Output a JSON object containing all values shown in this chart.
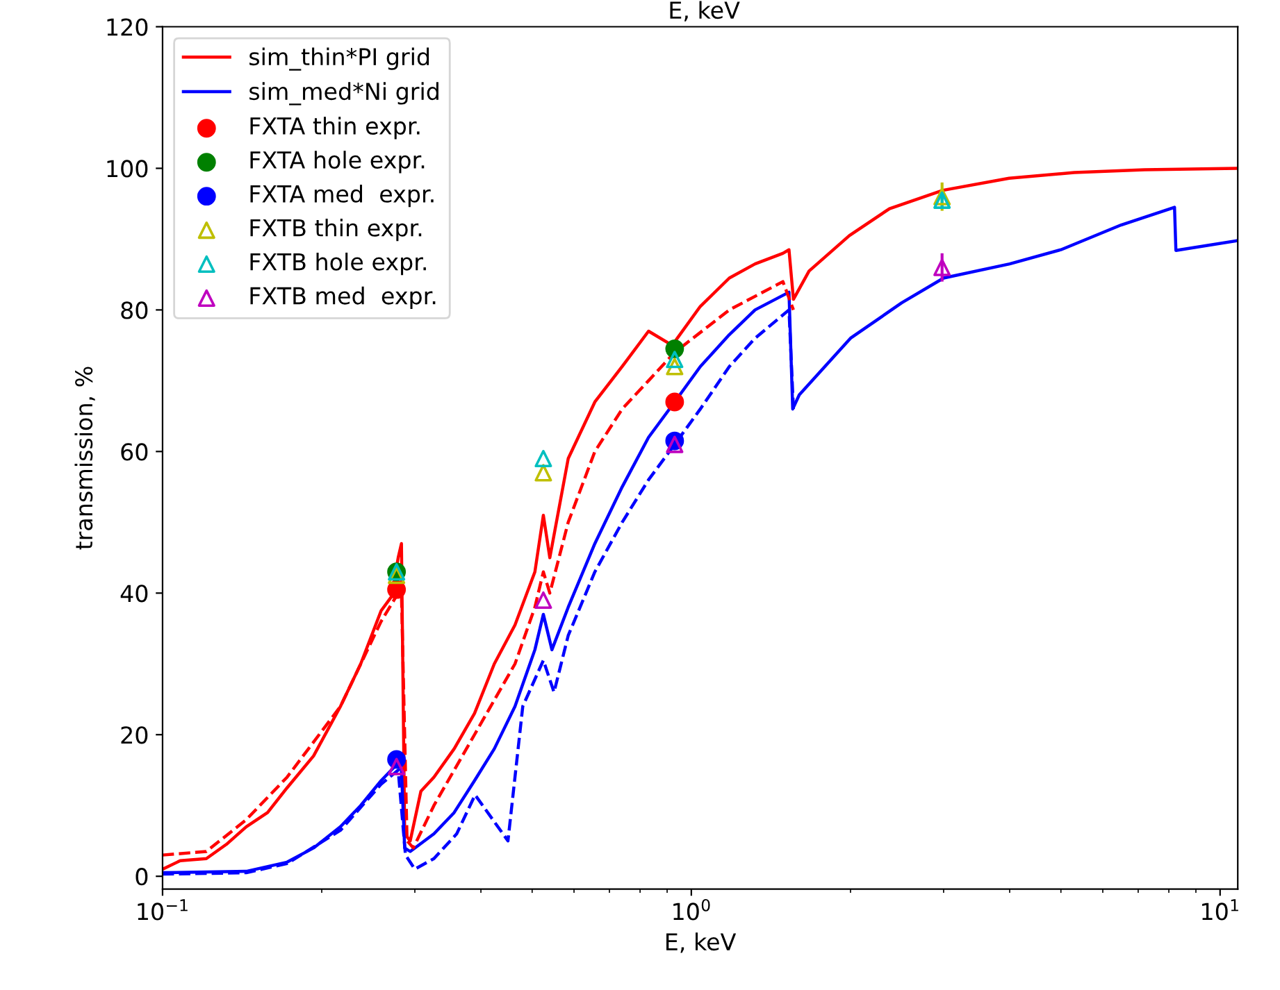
{
  "chart_data": {
    "type": "line",
    "xlabel": "E, keV",
    "ylabel": "transmission, %",
    "log": "x",
    "xlim": [
      0.1,
      10.8
    ],
    "ylim": [
      -1.8,
      120
    ],
    "xticks": [
      {
        "value": 0.1,
        "label": "10$^{−1}$"
      },
      {
        "value": 1,
        "label": "10$^{0}$"
      },
      {
        "value": 10,
        "label": "10$^{1}$"
      }
    ],
    "yticks": [
      0,
      20,
      40,
      60,
      80,
      100,
      120
    ],
    "grid": false,
    "legend": "top left",
    "annotations": [
      "E, keV"
    ],
    "series": [
      {
        "name": "sim_thin*PI grid",
        "color": "#ff0000",
        "line_style": "solid",
        "marker": "none",
        "x": [
          0.1,
          0.108,
          0.121,
          0.132,
          0.144,
          0.158,
          0.172,
          0.193,
          0.217,
          0.237,
          0.259,
          0.271,
          0.279,
          0.283,
          0.287,
          0.294,
          0.308,
          0.326,
          0.356,
          0.389,
          0.424,
          0.464,
          0.506,
          0.525,
          0.54,
          0.585,
          0.657,
          0.74,
          0.83,
          0.92,
          1.04,
          1.18,
          1.32,
          1.49,
          1.53,
          1.56,
          1.67,
          1.99,
          2.37,
          2.99,
          3.99,
          5.3,
          7.2,
          10.8
        ],
        "values": [
          1,
          2.2,
          2.5,
          4.5,
          7,
          9,
          12.5,
          17,
          24,
          30,
          37.5,
          39.5,
          45,
          47,
          6,
          5,
          12,
          14,
          18,
          23,
          30,
          35.5,
          43,
          51,
          45,
          59,
          67,
          72,
          77,
          75,
          80.5,
          84.5,
          86.5,
          88,
          88.5,
          81.5,
          85.5,
          90.5,
          94.3,
          96.9,
          98.6,
          99.4,
          99.8,
          100
        ]
      },
      {
        "name": "sim_med*Ni grid",
        "color": "#0000ff",
        "line_style": "solid",
        "marker": "none",
        "x": [
          0.1,
          0.144,
          0.172,
          0.193,
          0.217,
          0.237,
          0.259,
          0.279,
          0.283,
          0.287,
          0.294,
          0.326,
          0.356,
          0.389,
          0.424,
          0.464,
          0.506,
          0.525,
          0.545,
          0.585,
          0.657,
          0.74,
          0.83,
          0.93,
          1.04,
          1.18,
          1.32,
          1.53,
          1.555,
          1.6,
          2.0,
          2.5,
          3.0,
          4.0,
          5.0,
          6.5,
          8.2,
          8.25,
          10.8
        ],
        "values": [
          0.5,
          0.7,
          2,
          4,
          7,
          10,
          13.5,
          16,
          15,
          4,
          3.5,
          6,
          9,
          13.5,
          18,
          24,
          32,
          37,
          32,
          38,
          47,
          55,
          62,
          67,
          72,
          76.5,
          80,
          82.5,
          66,
          68,
          76,
          81,
          84.5,
          86.5,
          88.5,
          92,
          94.5,
          88.4,
          89.8
        ]
      },
      {
        "color": "#ff0000",
        "line_style": "dashed",
        "marker": "none",
        "x": [
          0.1,
          0.121,
          0.144,
          0.172,
          0.217,
          0.259,
          0.279,
          0.283,
          0.29,
          0.298,
          0.326,
          0.389,
          0.464,
          0.506,
          0.525,
          0.54,
          0.585,
          0.657,
          0.74,
          0.83,
          0.93,
          1.18,
          1.49,
          1.56
        ],
        "values": [
          3,
          3.5,
          8,
          14,
          24,
          36,
          40,
          40,
          5,
          4,
          10,
          20,
          30,
          38,
          43,
          40,
          50,
          60,
          66,
          70,
          74,
          80,
          84,
          80
        ]
      },
      {
        "color": "#0000ff",
        "line_style": "dashed",
        "marker": "none",
        "x": [
          0.1,
          0.144,
          0.172,
          0.217,
          0.259,
          0.279,
          0.288,
          0.3,
          0.326,
          0.36,
          0.39,
          0.45,
          0.48,
          0.525,
          0.55,
          0.585,
          0.657,
          0.74,
          0.83,
          0.93,
          1.04,
          1.18,
          1.32,
          1.53,
          1.56
        ],
        "values": [
          0.3,
          0.5,
          1.8,
          6.5,
          13,
          15,
          3,
          1,
          2.5,
          6,
          11.5,
          5,
          24,
          30.5,
          26,
          34,
          43,
          50,
          56,
          61,
          66,
          72,
          76,
          80,
          66
        ]
      },
      {
        "name": "FXTA thin expr.",
        "type": "scatter",
        "color": "#ff0000",
        "marker": "circle",
        "x": [
          0.277,
          0.93
        ],
        "values": [
          40.5,
          67
        ]
      },
      {
        "name": "FXTA hole expr.",
        "type": "scatter",
        "color": "#008000",
        "marker": "circle",
        "x": [
          0.277,
          0.93
        ],
        "values": [
          43,
          74.5
        ]
      },
      {
        "name": "FXTA med  expr.",
        "type": "scatter",
        "color": "#0000ff",
        "marker": "circle",
        "x": [
          0.277,
          0.93
        ],
        "values": [
          16.5,
          61.5
        ]
      },
      {
        "name": "FXTB thin expr.",
        "type": "scatter",
        "color": "#bfbf00",
        "marker": "triangle",
        "x": [
          0.277,
          0.525,
          0.93,
          2.98
        ],
        "values": [
          42.5,
          57,
          72,
          96
        ],
        "errors": [
          null,
          null,
          null,
          2
        ]
      },
      {
        "name": "FXTB hole expr.",
        "type": "scatter",
        "color": "#00bfbf",
        "marker": "triangle",
        "x": [
          0.277,
          0.525,
          0.93,
          2.98
        ],
        "values": [
          43,
          59,
          73,
          95.5
        ],
        "errors": [
          null,
          null,
          null,
          1
        ]
      },
      {
        "name": "FXTB med  expr.",
        "type": "scatter",
        "color": "#bf00bf",
        "marker": "triangle",
        "x": [
          0.277,
          0.525,
          0.93,
          2.98
        ],
        "values": [
          15.5,
          39,
          61,
          86
        ],
        "errors": [
          null,
          null,
          null,
          2
        ]
      }
    ]
  }
}
